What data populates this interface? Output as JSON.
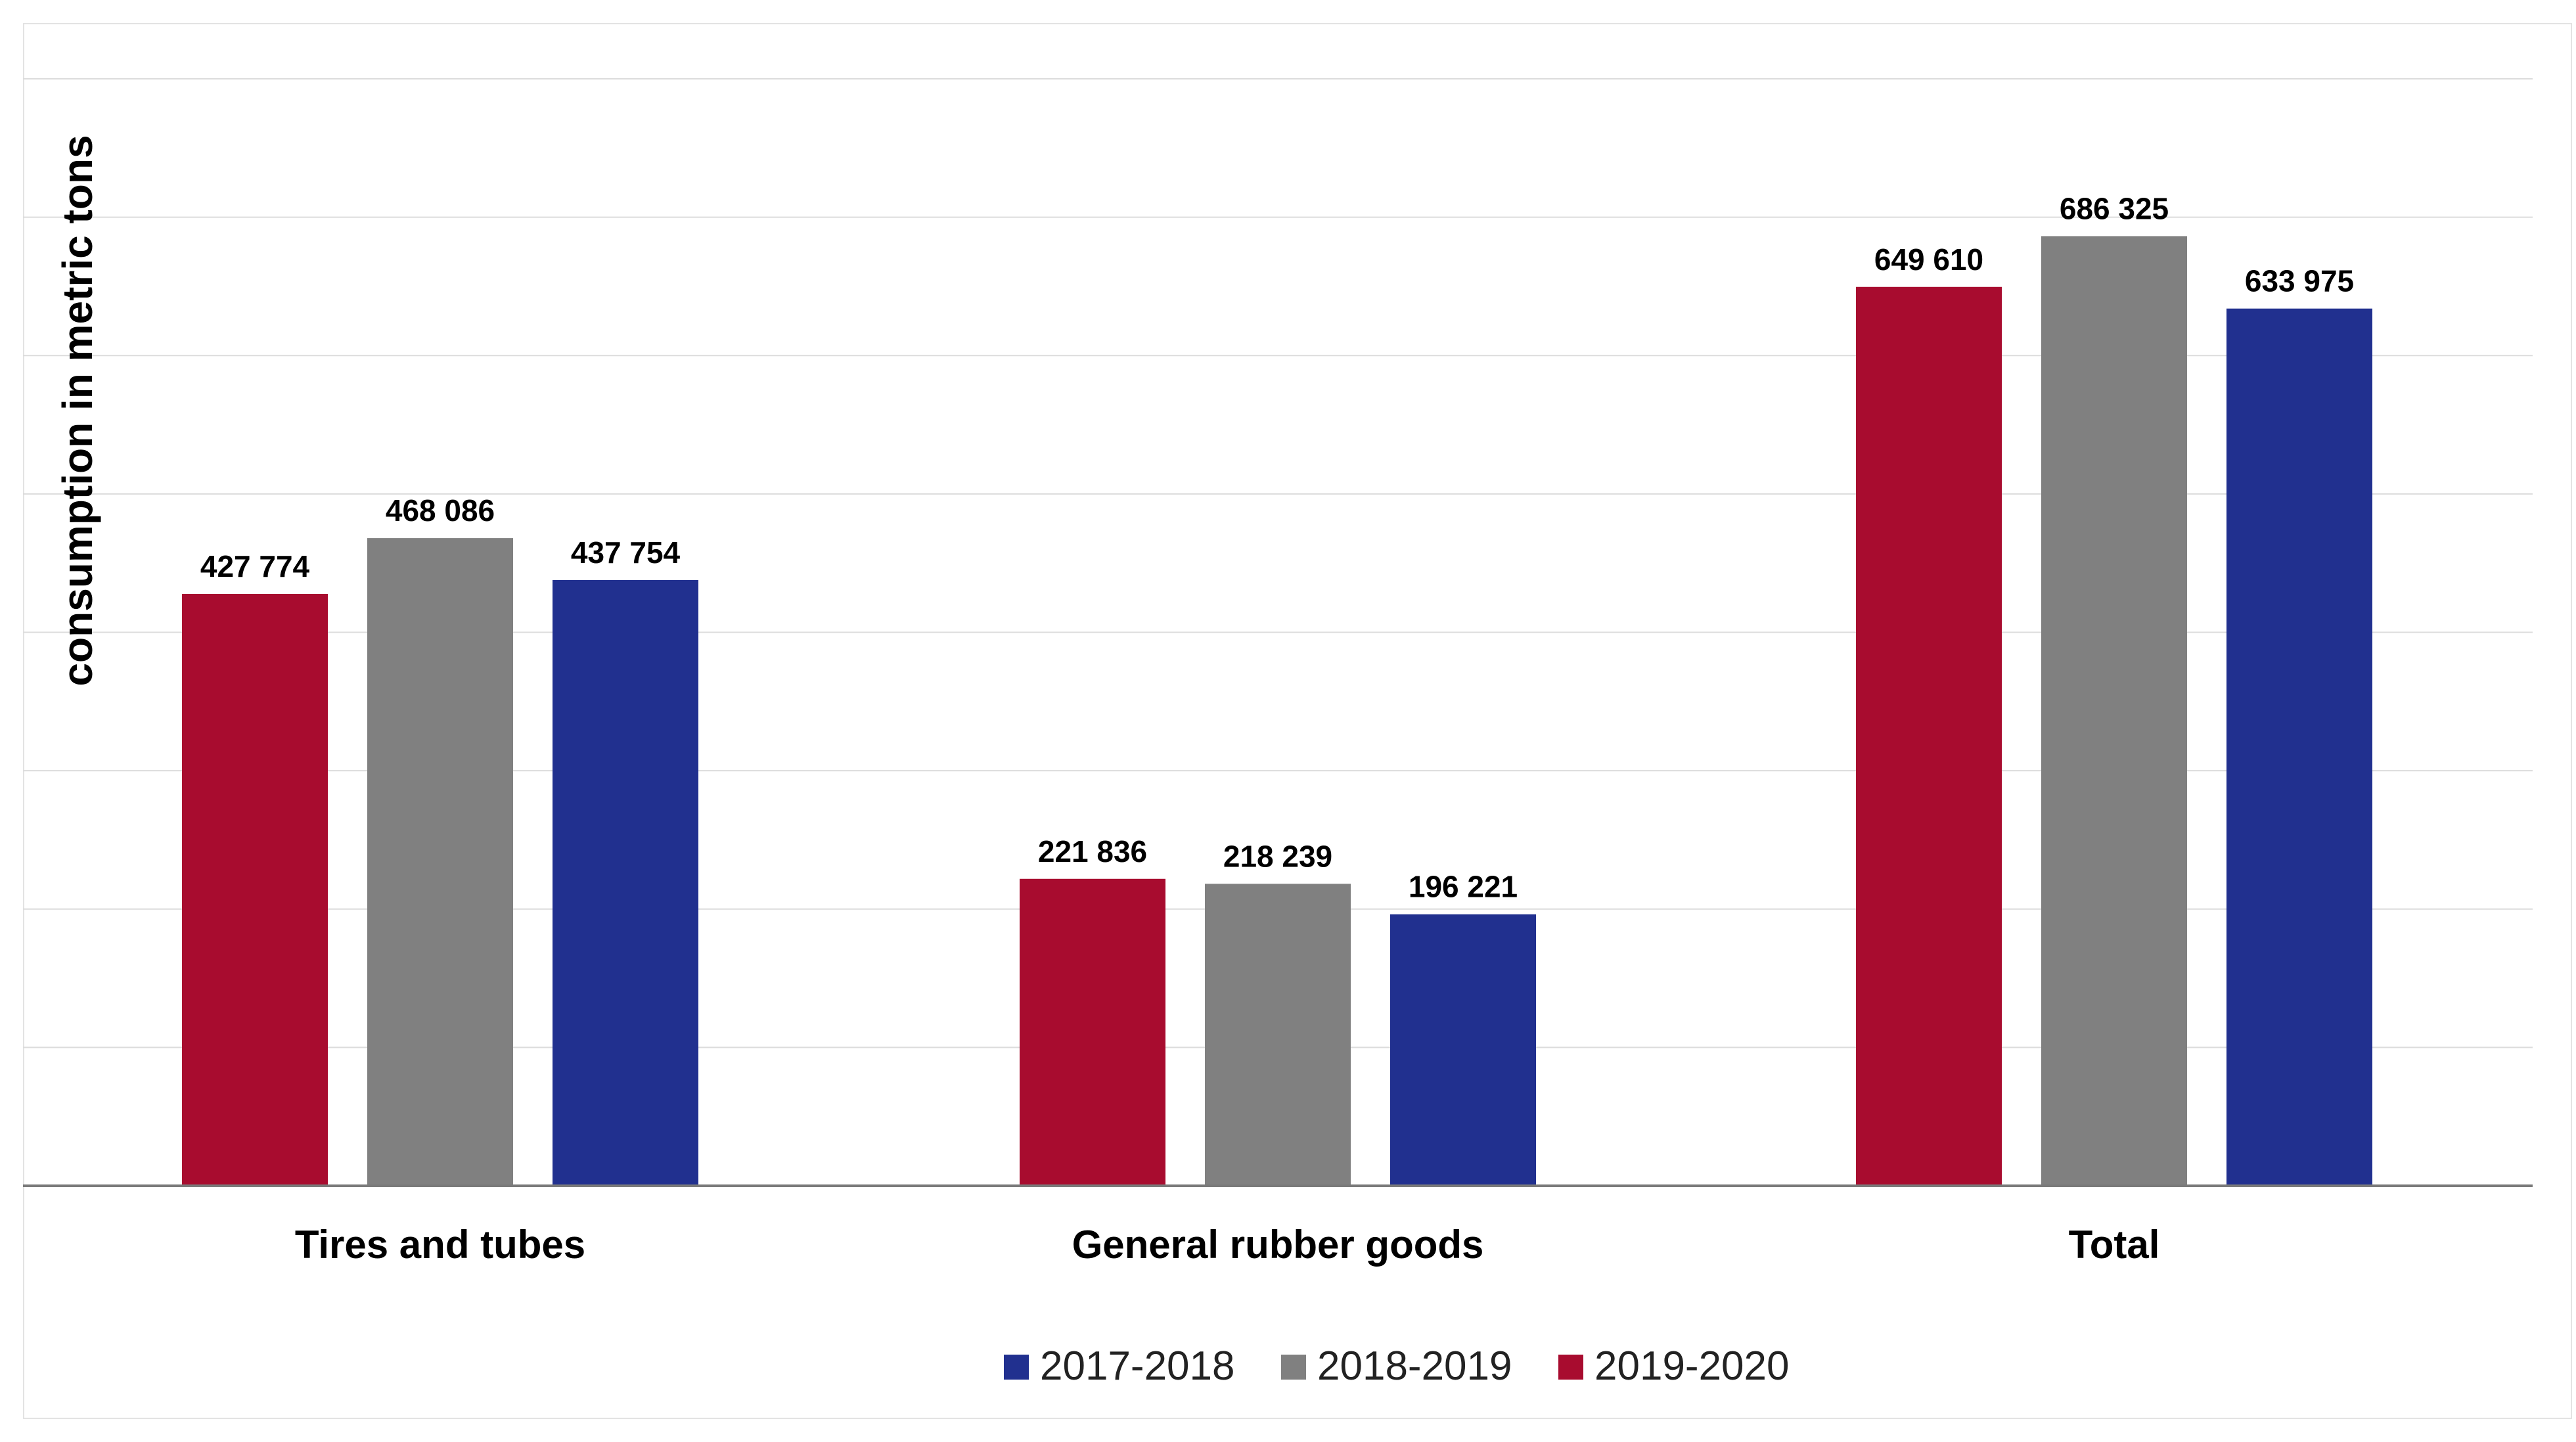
{
  "chart_data": {
    "type": "bar",
    "title": "",
    "xlabel": "",
    "ylabel": "consumption in metric tons",
    "ylim": [
      0,
      800000
    ],
    "ystep": 100000,
    "grid": true,
    "legend_position": "bottom-center",
    "categories": [
      "Tires and tubes",
      "General rubber goods",
      "Total"
    ],
    "series": [
      {
        "name": "2019-2020",
        "color": "#A80C2F",
        "values": [
          427774,
          221836,
          649610
        ],
        "labels": [
          "427 774",
          "221 836",
          "649 610"
        ]
      },
      {
        "name": "2018-2019",
        "color": "#808080",
        "values": [
          468086,
          218239,
          686325
        ],
        "labels": [
          "468 086",
          "218 239",
          "686 325"
        ]
      },
      {
        "name": "2017-2018",
        "color": "#21308F",
        "values": [
          437754,
          196221,
          633975
        ],
        "labels": [
          "437 754",
          "196 221",
          "633 975"
        ]
      }
    ],
    "legend_order": [
      "2017-2018",
      "2018-2019",
      "2019-2020"
    ]
  }
}
